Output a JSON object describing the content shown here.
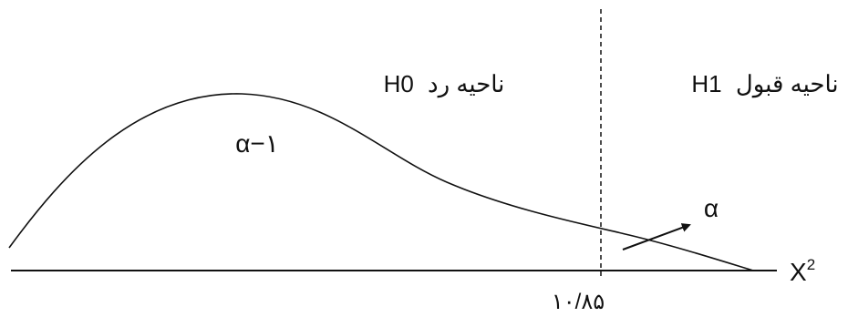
{
  "figure": {
    "regions": {
      "left_prefix": "ناحیه رد",
      "left_hyp": "H0",
      "right_prefix": "ناحیه قبول",
      "right_hyp": "H1"
    },
    "area_left_label": "α−١",
    "area_right_label": "α",
    "critical_value": "۱۰/۸۵",
    "x_axis_label": "X",
    "x_axis_superscript": "2",
    "colors": {
      "ink": "#111111",
      "background": "#ffffff"
    }
  }
}
